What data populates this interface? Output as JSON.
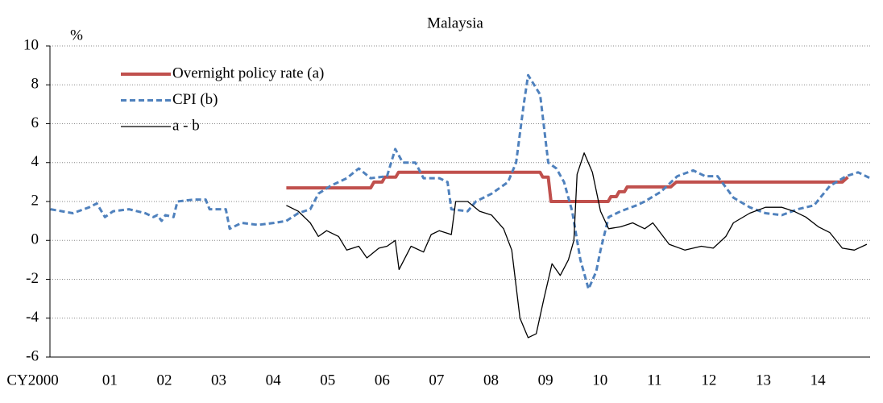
{
  "chart_data": {
    "type": "line",
    "title": "Malaysia",
    "y_unit": "%",
    "xlim": [
      1999.9,
      2014.96
    ],
    "ylim": [
      -6,
      10
    ],
    "yticks": [
      -6,
      -4,
      -2,
      0,
      2,
      4,
      6,
      8,
      10
    ],
    "xticks": [
      {
        "value": 2000,
        "label": "CY2000"
      },
      {
        "value": 2001,
        "label": "01"
      },
      {
        "value": 2002,
        "label": "02"
      },
      {
        "value": 2003,
        "label": "03"
      },
      {
        "value": 2004,
        "label": "04"
      },
      {
        "value": 2005,
        "label": "05"
      },
      {
        "value": 2006,
        "label": "06"
      },
      {
        "value": 2007,
        "label": "07"
      },
      {
        "value": 2008,
        "label": "08"
      },
      {
        "value": 2009,
        "label": "09"
      },
      {
        "value": 2010,
        "label": "10"
      },
      {
        "value": 2011,
        "label": "11"
      },
      {
        "value": 2012,
        "label": "12"
      },
      {
        "value": 2013,
        "label": "13"
      },
      {
        "value": 2014,
        "label": "14"
      }
    ],
    "grid": true,
    "legend": "upper-left",
    "series": [
      {
        "name": "Overnight policy rate (a)",
        "color": "#c0504d",
        "style": "solid",
        "width": 4,
        "x": [
          2004.24,
          2005.79,
          2005.85,
          2006.0,
          2006.05,
          2006.25,
          2006.3,
          2008.9,
          2008.95,
          2009.05,
          2009.1,
          2010.15,
          2010.2,
          2010.3,
          2010.35,
          2010.45,
          2010.5,
          2011.3,
          2011.4,
          2014.45,
          2014.55
        ],
        "values": [
          2.7,
          2.7,
          3.0,
          3.0,
          3.25,
          3.25,
          3.5,
          3.5,
          3.25,
          3.25,
          2.0,
          2.0,
          2.25,
          2.25,
          2.5,
          2.5,
          2.75,
          2.75,
          3.0,
          3.0,
          3.25
        ]
      },
      {
        "name": "CPI (b)",
        "color": "#4f81bd",
        "style": "dashed",
        "width": 3,
        "x": [
          1999.91,
          2000.32,
          2000.62,
          2000.76,
          2000.91,
          2001.06,
          2001.35,
          2001.65,
          2001.8,
          2001.87,
          2001.95,
          2002.02,
          2002.17,
          2002.24,
          2002.54,
          2002.76,
          2002.83,
          2003.13,
          2003.2,
          2003.42,
          2003.72,
          2004.02,
          2004.24,
          2004.46,
          2004.68,
          2004.83,
          2005.05,
          2005.35,
          2005.57,
          2005.79,
          2006.09,
          2006.24,
          2006.38,
          2006.61,
          2006.76,
          2007.05,
          2007.2,
          2007.27,
          2007.57,
          2007.72,
          2008.01,
          2008.31,
          2008.46,
          2008.6,
          2008.68,
          2008.9,
          2009.05,
          2009.2,
          2009.34,
          2009.49,
          2009.64,
          2009.79,
          2009.93,
          2010.01,
          2010.16,
          2010.38,
          2010.67,
          2010.82,
          2011.12,
          2011.42,
          2011.71,
          2011.93,
          2012.16,
          2012.45,
          2012.75,
          2013.04,
          2013.34,
          2013.63,
          2013.93,
          2014.22,
          2014.52,
          2014.74,
          2014.96
        ],
        "values": [
          1.6,
          1.4,
          1.7,
          1.9,
          1.2,
          1.5,
          1.6,
          1.4,
          1.2,
          1.3,
          1.0,
          1.3,
          1.2,
          2.0,
          2.1,
          2.1,
          1.6,
          1.6,
          0.6,
          0.9,
          0.8,
          0.9,
          1.0,
          1.4,
          1.6,
          2.4,
          2.8,
          3.2,
          3.7,
          3.2,
          3.3,
          4.7,
          4.0,
          4.0,
          3.2,
          3.2,
          3.0,
          1.6,
          1.5,
          2.0,
          2.4,
          3.0,
          4.0,
          7.0,
          8.5,
          7.5,
          4.0,
          3.7,
          3.0,
          1.5,
          -1.0,
          -2.5,
          -1.6,
          -0.5,
          1.2,
          1.5,
          1.8,
          2.0,
          2.5,
          3.3,
          3.6,
          3.3,
          3.3,
          2.2,
          1.7,
          1.4,
          1.3,
          1.6,
          1.8,
          2.8,
          3.3,
          3.5,
          3.2
        ]
      },
      {
        "name": "a - b",
        "color": "#000000",
        "style": "solid",
        "width": 1.3,
        "x": [
          2004.24,
          2004.46,
          2004.68,
          2004.83,
          2004.98,
          2005.2,
          2005.35,
          2005.57,
          2005.72,
          2005.94,
          2006.09,
          2006.24,
          2006.31,
          2006.53,
          2006.76,
          2006.9,
          2007.05,
          2007.27,
          2007.35,
          2007.57,
          2007.79,
          2008.01,
          2008.23,
          2008.38,
          2008.53,
          2008.68,
          2008.83,
          2008.97,
          2009.12,
          2009.27,
          2009.42,
          2009.52,
          2009.58,
          2009.71,
          2009.86,
          2010.01,
          2010.16,
          2010.38,
          2010.6,
          2010.82,
          2010.97,
          2011.27,
          2011.56,
          2011.86,
          2012.08,
          2012.31,
          2012.45,
          2012.75,
          2013.04,
          2013.34,
          2013.56,
          2013.78,
          2014.01,
          2014.22,
          2014.45,
          2014.67,
          2014.9
        ],
        "values": [
          1.8,
          1.5,
          0.9,
          0.2,
          0.5,
          0.2,
          -0.5,
          -0.3,
          -0.9,
          -0.4,
          -0.3,
          0,
          -1.5,
          -0.3,
          -0.6,
          0.3,
          0.5,
          0.3,
          2.0,
          2.0,
          1.5,
          1.3,
          0.6,
          -0.5,
          -4.0,
          -5.0,
          -4.8,
          -3.0,
          -1.2,
          -1.8,
          -1.0,
          0,
          3.4,
          4.5,
          3.5,
          1.5,
          0.6,
          0.7,
          0.9,
          0.6,
          0.9,
          -0.2,
          -0.5,
          -0.3,
          -0.4,
          0.2,
          0.9,
          1.4,
          1.7,
          1.7,
          1.5,
          1.2,
          0.7,
          0.4,
          -0.4,
          -0.5,
          -0.2
        ]
      }
    ]
  }
}
